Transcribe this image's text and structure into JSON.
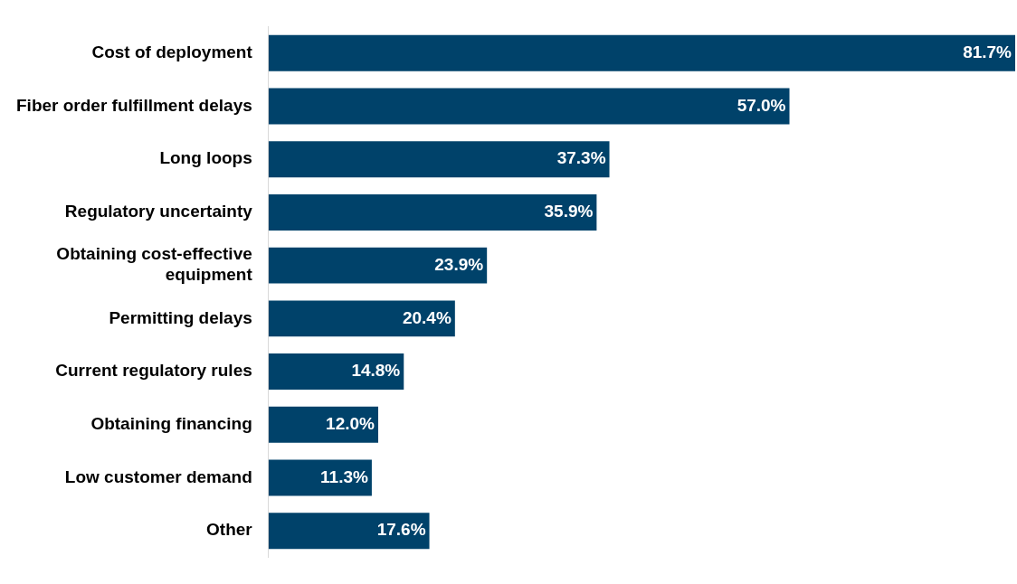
{
  "chart_data": {
    "type": "bar",
    "orientation": "horizontal",
    "categories": [
      "Cost of deployment",
      "Fiber order fulfillment delays",
      "Long loops",
      "Regulatory uncertainty",
      "Obtaining cost-effective equipment",
      "Permitting delays",
      "Current regulatory rules",
      "Obtaining financing",
      "Low customer demand",
      "Other"
    ],
    "values": [
      81.7,
      57.0,
      37.3,
      35.9,
      23.9,
      20.4,
      14.8,
      12.0,
      11.3,
      17.6
    ],
    "value_labels": [
      "81.7%",
      "57.0%",
      "37.3%",
      "35.9%",
      "23.9%",
      "20.4%",
      "14.8%",
      "12.0%",
      "11.3%",
      "17.6%"
    ],
    "color": "#00426a",
    "xlim": [
      0,
      81.7
    ],
    "tick_labels": "y",
    "grid": false,
    "legend": false
  }
}
